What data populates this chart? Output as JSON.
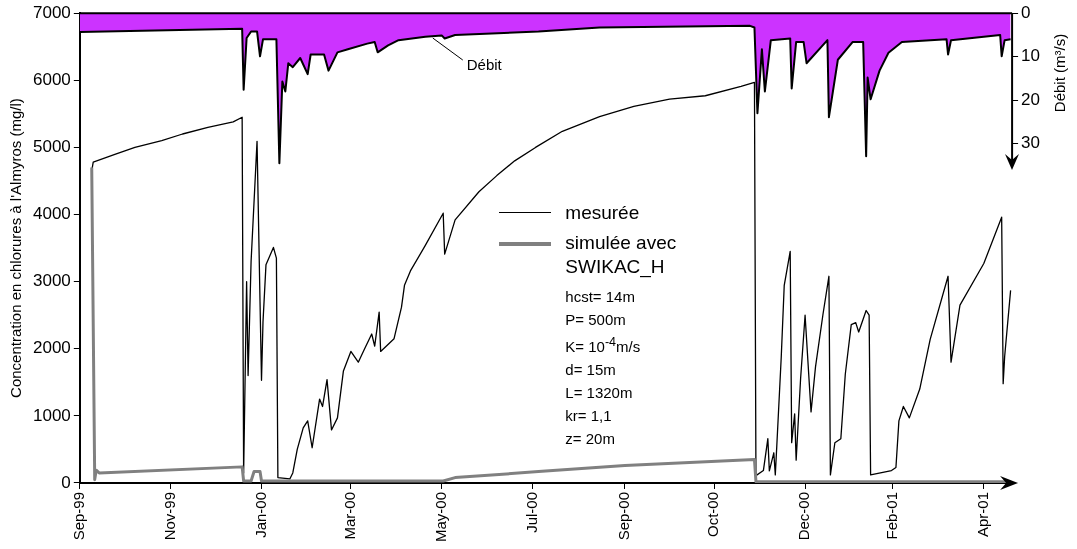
{
  "chart_data": {
    "type": "line",
    "ylabel": "Concentration en chlorures à l'Almyros (mg/l)",
    "y2label": "Débit (m³/s)",
    "xlim": [
      "1999-09-01",
      "2001-05-19"
    ],
    "xticks": [
      {
        "value": "1999-09-01",
        "label": "Sep-99"
      },
      {
        "value": "1999-11-01",
        "label": "Nov-99"
      },
      {
        "value": "2000-01-01",
        "label": "Jan-00"
      },
      {
        "value": "2000-03-01",
        "label": "Mar-00"
      },
      {
        "value": "2000-05-01",
        "label": "May-00"
      },
      {
        "value": "2000-07-01",
        "label": "Jul-00"
      },
      {
        "value": "2000-09-01",
        "label": "Sep-00"
      },
      {
        "value": "2000-10-31",
        "label": "Oct-00"
      },
      {
        "value": "2000-12-31",
        "label": "Dec-00"
      },
      {
        "value": "2001-02-28",
        "label": "Feb-01"
      },
      {
        "value": "2001-04-30",
        "label": "Apr-01"
      }
    ],
    "ylim": [
      0,
      7000
    ],
    "yticks": [
      0,
      1000,
      2000,
      3000,
      4000,
      5000,
      6000,
      7000
    ],
    "y2lim": [
      108,
      0
    ],
    "y2ticks": [
      0,
      10,
      20,
      30
    ],
    "grid": false,
    "legend": "center",
    "marker": "none",
    "series": [
      {
        "name": "mesurée",
        "type": "line",
        "color": "#000000",
        "x": [
          "1999-09-09",
          "1999-09-10",
          "1999-09-25",
          "1999-10-08",
          "1999-10-26",
          "1999-11-09",
          "1999-11-26",
          "1999-12-13",
          "1999-12-19",
          "1999-12-20",
          "1999-12-22",
          "1999-12-23",
          "1999-12-25",
          "1999-12-29",
          "1999-12-31",
          "2000-01-01",
          "2000-01-02",
          "2000-01-04",
          "2000-01-09",
          "2000-01-11",
          "2000-01-12",
          "2000-01-20",
          "2000-01-22",
          "2000-01-25",
          "2000-01-29",
          "2000-02-01",
          "2000-02-04",
          "2000-02-09",
          "2000-02-11",
          "2000-02-14",
          "2000-02-17",
          "2000-02-21",
          "2000-02-25",
          "2000-03-01",
          "2000-03-06",
          "2000-03-10",
          "2000-03-15",
          "2000-03-17",
          "2000-03-20",
          "2000-03-21",
          "2000-03-30",
          "2000-04-04",
          "2000-04-06",
          "2000-04-10",
          "2000-04-20",
          "2000-05-02",
          "2000-05-03",
          "2000-05-10",
          "2000-05-26",
          "2000-06-07",
          "2000-06-19",
          "2000-07-03",
          "2000-07-21",
          "2000-08-15",
          "2000-09-07",
          "2000-10-01",
          "2000-10-25",
          "2000-11-18",
          "2000-11-27",
          "2000-11-28",
          "2000-12-03",
          "2000-12-06",
          "2000-12-07",
          "2000-12-10",
          "2000-12-11",
          "2000-12-12",
          "2000-12-15",
          "2000-12-17",
          "2000-12-21",
          "2000-12-22",
          "2000-12-24",
          "2000-12-25",
          "2000-12-28",
          "2000-12-31",
          "2001-01-04",
          "2001-01-07",
          "2001-01-12",
          "2001-01-16",
          "2001-01-17",
          "2001-01-20",
          "2001-01-24",
          "2001-01-27",
          "2001-01-31",
          "2001-02-03",
          "2001-02-05",
          "2001-02-10",
          "2001-02-12",
          "2001-02-13",
          "2001-02-27",
          "2001-03-02",
          "2001-03-04",
          "2001-03-07",
          "2001-03-11",
          "2001-03-18",
          "2001-03-25",
          "2001-04-06",
          "2001-04-08",
          "2001-04-14",
          "2001-04-30",
          "2001-05-12",
          "2001-05-13",
          "2001-05-14",
          "2001-05-18"
        ],
        "values": [
          4650,
          4780,
          4900,
          5000,
          5100,
          5200,
          5300,
          5380,
          5450,
          150,
          3000,
          1600,
          3300,
          5090,
          2700,
          1530,
          2400,
          3250,
          3510,
          3350,
          80,
          60,
          150,
          500,
          820,
          925,
          525,
          1250,
          1140,
          1540,
          790,
          970,
          1670,
          1960,
          1800,
          1990,
          2220,
          2040,
          2545,
          1960,
          2150,
          2620,
          2945,
          3160,
          3540,
          4020,
          3410,
          3920,
          4340,
          4580,
          4800,
          5000,
          5240,
          5460,
          5610,
          5720,
          5770,
          5910,
          5970,
          110,
          185,
          660,
          180,
          450,
          120,
          550,
          1880,
          2945,
          3450,
          600,
          1030,
          340,
          1560,
          2500,
          1060,
          1730,
          2510,
          3080,
          120,
          600,
          660,
          1620,
          2360,
          2390,
          2250,
          2570,
          2500,
          120,
          185,
          230,
          925,
          1140,
          970,
          1400,
          2140,
          3080,
          1800,
          2650,
          3270,
          3960,
          1480,
          1880,
          2870
        ]
      },
      {
        "name": "simulée avec SWIKAC_H",
        "type": "line",
        "color": "#808080",
        "x": [
          "1999-09-09",
          "1999-09-11",
          "1999-09-12",
          "1999-09-14",
          "1999-12-19",
          "1999-12-20",
          "1999-12-25",
          "1999-12-27",
          "1999-12-31",
          "2000-01-01",
          "2000-05-02",
          "2000-05-10",
          "2000-07-05",
          "2000-09-01",
          "2000-11-27",
          "2000-11-28",
          "2001-05-18"
        ],
        "values": [
          4700,
          50,
          190,
          150,
          240,
          30,
          30,
          170,
          170,
          30,
          30,
          80,
          170,
          260,
          350,
          20,
          20
        ]
      },
      {
        "type": "area",
        "axis": "y2",
        "color": "#cc33ff",
        "x": [
          "1999-09-01",
          "1999-12-19",
          "1999-12-20",
          "1999-12-22",
          "1999-12-25",
          "1999-12-29",
          "1999-12-31",
          "2000-01-02",
          "2000-01-11",
          "2000-01-13",
          "2000-01-15",
          "2000-01-17",
          "2000-01-19",
          "2000-01-22",
          "2000-01-27",
          "2000-02-01",
          "2000-02-03",
          "2000-02-12",
          "2000-02-15",
          "2000-02-21",
          "2000-02-28",
          "2000-03-12",
          "2000-03-17",
          "2000-03-19",
          "2000-03-26",
          "2000-04-02",
          "2000-04-20",
          "2000-05-01",
          "2000-05-03",
          "2000-05-10",
          "2000-07-05",
          "2000-08-15",
          "2000-11-24",
          "2000-11-27",
          "2000-11-29",
          "2000-12-02",
          "2000-12-04",
          "2000-12-08",
          "2000-12-21",
          "2000-12-22",
          "2000-12-25",
          "2000-12-30",
          "2001-01-01",
          "2001-01-15",
          "2001-01-16",
          "2001-01-22",
          "2001-02-01",
          "2001-02-08",
          "2001-02-10",
          "2001-02-11",
          "2001-02-13",
          "2001-02-19",
          "2001-02-25",
          "2001-03-06",
          "2001-04-05",
          "2001-04-06",
          "2001-04-08",
          "2001-05-11",
          "2001-05-12",
          "2001-05-14",
          "2001-05-18"
        ],
        "values": [
          4.3,
          3.6,
          17.6,
          5.7,
          4.2,
          4.2,
          9.9,
          6,
          6,
          34.5,
          15.7,
          18,
          11.5,
          12.4,
          10.3,
          14,
          9.5,
          9.5,
          13.2,
          9,
          8.3,
          7,
          6.6,
          9,
          7.4,
          6.2,
          5.4,
          5.1,
          5.8,
          5,
          4.2,
          3.3,
          2.9,
          3.3,
          23,
          8.3,
          18,
          6.2,
          5.8,
          17.3,
          6.6,
          6.6,
          11.5,
          6.2,
          23.9,
          10.7,
          6.6,
          6.6,
          32.9,
          14.8,
          19.8,
          13.2,
          9.1,
          6.6,
          6,
          9.5,
          6.2,
          5,
          9.9,
          6.2,
          6
        ]
      }
    ],
    "annotations": [
      {
        "text": "Débit",
        "x": "2000-04-25",
        "y": 6660
      },
      "hcst= 14m",
      "P= 500m",
      "K= 10$^{-4}$m/s",
      "d= 15m",
      "L= 1320m",
      "kr= 1,1",
      "z= 20m"
    ]
  }
}
